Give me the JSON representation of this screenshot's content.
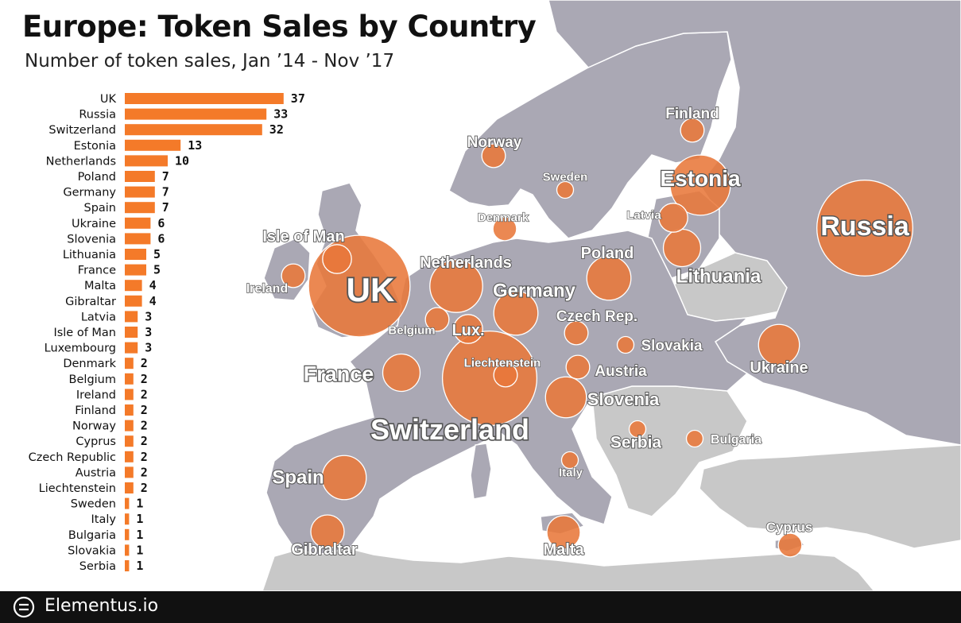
{
  "header": {
    "title": "Europe: Token Sales by Country",
    "subtitle": "Number of token sales, Jan ’14 - Nov ’17"
  },
  "footer": {
    "brand": "Elementus.io",
    "logo_icon": "elementus-logo-icon"
  },
  "colors": {
    "bar": "#f47a29",
    "bubble": "#e8773a",
    "land": "#aaa8b4",
    "neighbor_land": "#c8c8c8",
    "sea": "#ffffff",
    "footer": "#111111"
  },
  "chart_data": [
    {
      "type": "bar",
      "orientation": "horizontal",
      "categories": [
        "UK",
        "Russia",
        "Switzerland",
        "Estonia",
        "Netherlands",
        "Poland",
        "Germany",
        "Spain",
        "Ukraine",
        "Slovenia",
        "Lithuania",
        "France",
        "Malta",
        "Gibraltar",
        "Latvia",
        "Isle of Man",
        "Luxembourg",
        "Denmark",
        "Belgium",
        "Ireland",
        "Finland",
        "Norway",
        "Cyprus",
        "Czech Republic",
        "Austria",
        "Liechtenstein",
        "Sweden",
        "Italy",
        "Bulgaria",
        "Slovakia",
        "Serbia"
      ],
      "values": [
        37,
        33,
        32,
        13,
        10,
        7,
        7,
        7,
        6,
        6,
        5,
        5,
        4,
        4,
        3,
        3,
        3,
        2,
        2,
        2,
        2,
        2,
        2,
        2,
        2,
        2,
        1,
        1,
        1,
        1,
        1
      ],
      "data_labels": true,
      "grid": false
    },
    {
      "type": "bubble-map",
      "basemap": "europe-map",
      "points": [
        {
          "label": "UK",
          "value": 37
        },
        {
          "label": "Russia",
          "value": 33
        },
        {
          "label": "Switzerland",
          "value": 32
        },
        {
          "label": "Estonia",
          "value": 13
        },
        {
          "label": "Netherlands",
          "value": 10
        },
        {
          "label": "Poland",
          "value": 7
        },
        {
          "label": "Germany",
          "value": 7
        },
        {
          "label": "Spain",
          "value": 7
        },
        {
          "label": "Ukraine",
          "value": 6
        },
        {
          "label": "Slovenia",
          "value": 6
        },
        {
          "label": "Lithuania",
          "value": 5
        },
        {
          "label": "France",
          "value": 5
        },
        {
          "label": "Malta",
          "value": 4
        },
        {
          "label": "Gibraltar",
          "value": 4
        },
        {
          "label": "Latvia",
          "value": 3
        },
        {
          "label": "Isle of Man",
          "value": 3
        },
        {
          "label": "Lux.",
          "value": 3
        },
        {
          "label": "Denmark",
          "value": 2
        },
        {
          "label": "Belgium",
          "value": 2
        },
        {
          "label": "Ireland",
          "value": 2
        },
        {
          "label": "Finland",
          "value": 2
        },
        {
          "label": "Norway",
          "value": 2
        },
        {
          "label": "Cyprus",
          "value": 2
        },
        {
          "label": "Czech Rep.",
          "value": 2
        },
        {
          "label": "Austria",
          "value": 2
        },
        {
          "label": "Liechtenstein",
          "value": 2
        },
        {
          "label": "Sweden",
          "value": 1
        },
        {
          "label": "Italy",
          "value": 1
        },
        {
          "label": "Bulgaria",
          "value": 1
        },
        {
          "label": "Slovakia",
          "value": 1
        },
        {
          "label": "Serbia",
          "value": 1
        }
      ]
    }
  ]
}
